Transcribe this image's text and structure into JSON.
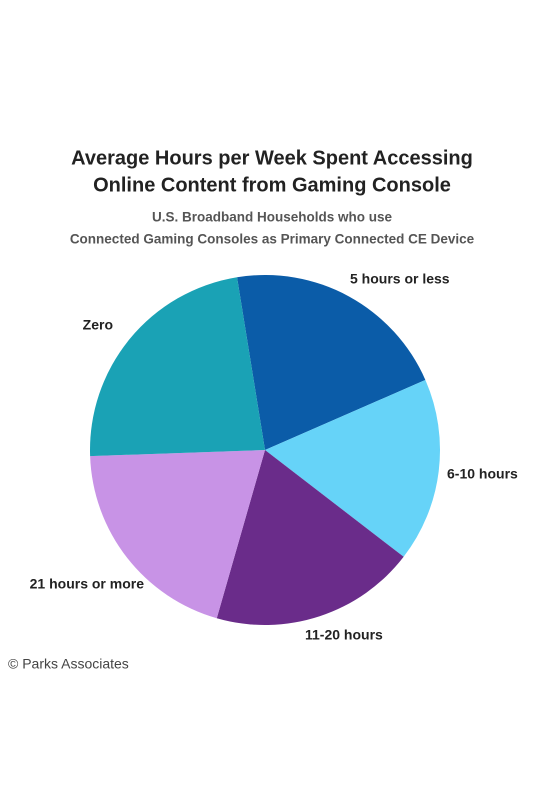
{
  "chart_data": {
    "type": "pie",
    "title": [
      "Average Hours per Week Spent Accessing",
      "Online Content from Gaming Console"
    ],
    "subtitle": [
      "U.S. Broadband Households who use",
      "Connected Gaming Consoles as Primary Connected CE Device"
    ],
    "categories": [
      "5 hours or less",
      "6-10 hours",
      "11-20 hours",
      "21 hours or more",
      "Zero"
    ],
    "values": [
      21,
      17,
      19,
      20,
      23
    ],
    "colors": [
      "#0b5ca8",
      "#66d3f8",
      "#6a2c8a",
      "#c893e6",
      "#1aa2b5"
    ],
    "source": "© Parks Associates"
  }
}
